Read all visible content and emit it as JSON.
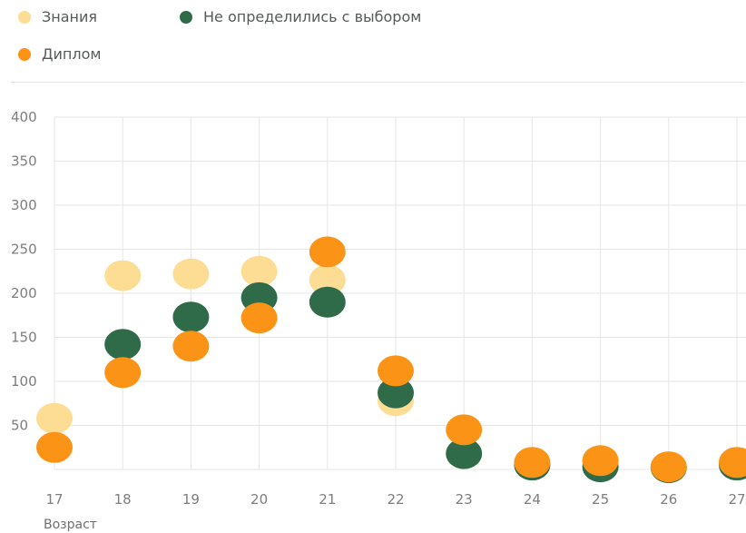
{
  "chart_data": {
    "type": "scatter",
    "x": [
      17,
      18,
      19,
      20,
      21,
      22,
      23,
      24,
      25,
      26,
      27
    ],
    "xlabel": "Возраст",
    "ylabel": "",
    "ylim": [
      0,
      400
    ],
    "yticks": [
      50,
      100,
      150,
      200,
      250,
      300,
      350,
      400
    ],
    "grid": true,
    "legend_position": "top-left",
    "series": [
      {
        "name": "Знания",
        "color": "#fddd94",
        "values": [
          58,
          220,
          222,
          225,
          215,
          78,
          null,
          null,
          null,
          null,
          null
        ]
      },
      {
        "name": "Не определились с выбором",
        "color": "#2f6b48",
        "values": [
          null,
          142,
          173,
          195,
          190,
          87,
          18,
          5,
          3,
          2,
          5
        ]
      },
      {
        "name": "Диплом",
        "color": "#fb9317",
        "values": [
          25,
          110,
          140,
          172,
          247,
          112,
          45,
          8,
          10,
          3,
          8
        ]
      }
    ]
  }
}
